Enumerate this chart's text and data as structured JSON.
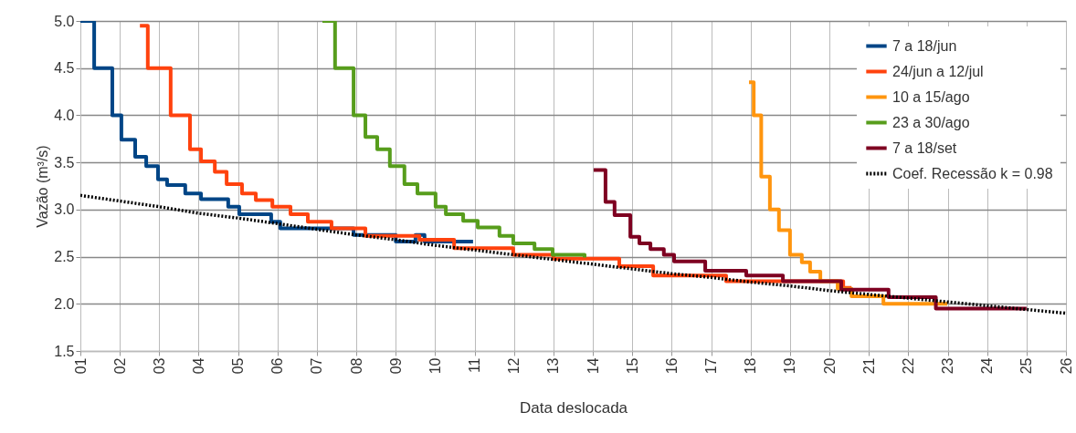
{
  "chart_data": {
    "type": "step",
    "xlabel": "Data deslocada",
    "ylabel": "Vazão (m³/s)",
    "xlim": [
      1,
      26
    ],
    "xticks": [
      {
        "value": 1,
        "label": "01"
      },
      {
        "value": 2,
        "label": "02"
      },
      {
        "value": 3,
        "label": "03"
      },
      {
        "value": 4,
        "label": "04"
      },
      {
        "value": 5,
        "label": "05"
      },
      {
        "value": 6,
        "label": "06"
      },
      {
        "value": 7,
        "label": "07"
      },
      {
        "value": 8,
        "label": "08"
      },
      {
        "value": 9,
        "label": "09"
      },
      10,
      11,
      12,
      13,
      14,
      15,
      16,
      17,
      18,
      19,
      20,
      21,
      22,
      23,
      24,
      25,
      26
    ],
    "ylim": [
      1.5,
      5.0
    ],
    "yticks": [
      1.5,
      {
        "value": 2,
        "label": "2.0"
      },
      2.5,
      {
        "value": 3,
        "label": "3.0"
      },
      3.5,
      {
        "value": 4,
        "label": "4.0"
      },
      4.5,
      {
        "value": 5,
        "label": "5.0"
      }
    ],
    "grid": true,
    "legend": "top right",
    "line_style": "solid",
    "marker": "none",
    "series": [
      {
        "name": "7 a 18/jun",
        "color": "#004586",
        "x": [
          1.0,
          1.35,
          1.81,
          2.04,
          2.39,
          2.67,
          2.97,
          3.2,
          3.66,
          4.06,
          4.75,
          5.03,
          5.84,
          6.07,
          7.93,
          9.0,
          9.5,
          9.73,
          10.96
        ],
        "values": [
          5.0,
          4.5,
          4.0,
          3.74,
          3.56,
          3.46,
          3.32,
          3.26,
          3.17,
          3.11,
          3.03,
          2.95,
          2.87,
          2.8,
          2.73,
          2.66,
          2.73,
          2.66,
          2.66
        ]
      },
      {
        "name": "24/jun a 12/jul",
        "color": "#ff420e",
        "x": [
          2.51,
          2.71,
          3.29,
          3.78,
          4.06,
          4.41,
          4.71,
          5.1,
          5.45,
          5.87,
          6.33,
          6.77,
          7.37,
          8.23,
          9.6,
          10.48,
          11.98,
          13.0,
          14.67,
          15.53,
          17.38,
          20.35,
          20.56
        ],
        "values": [
          4.95,
          4.5,
          4.0,
          3.64,
          3.51,
          3.4,
          3.27,
          3.17,
          3.1,
          3.03,
          2.95,
          2.87,
          2.8,
          2.72,
          2.68,
          2.59,
          2.52,
          2.48,
          2.4,
          2.3,
          2.24,
          2.17,
          2.17
        ]
      },
      {
        "name": "10 a 15/ago",
        "color": "#ff950e",
        "x": [
          17.96,
          18.08,
          18.27,
          18.49,
          18.72,
          19.0,
          19.3,
          19.51,
          19.77,
          20.21,
          20.56,
          21.37,
          22.99
        ],
        "values": [
          4.35,
          4.0,
          3.35,
          3.0,
          2.78,
          2.52,
          2.44,
          2.34,
          2.24,
          2.16,
          2.08,
          2.0,
          2.0
        ]
      },
      {
        "name": "23 a 30/ago",
        "color": "#579d1c",
        "x": [
          7.14,
          7.46,
          7.93,
          8.23,
          8.53,
          8.85,
          9.22,
          9.55,
          10.01,
          10.27,
          10.71,
          11.08,
          11.63,
          11.98,
          12.52,
          12.98,
          13.79
        ],
        "values": [
          5.0,
          4.5,
          4.0,
          3.77,
          3.64,
          3.46,
          3.27,
          3.17,
          3.03,
          2.95,
          2.88,
          2.81,
          2.72,
          2.64,
          2.58,
          2.52,
          2.49
        ]
      },
      {
        "name": "7 a 18/set",
        "color": "#7e0021",
        "x": [
          14.02,
          14.32,
          14.55,
          14.95,
          15.18,
          15.46,
          15.8,
          16.06,
          16.85,
          17.89,
          18.82,
          20.3,
          21.5,
          22.7,
          25.0
        ],
        "values": [
          3.42,
          3.08,
          2.94,
          2.71,
          2.64,
          2.58,
          2.52,
          2.45,
          2.35,
          2.3,
          2.24,
          2.15,
          2.07,
          1.95,
          1.95
        ]
      },
      {
        "name": "Coef. Recessão k = 0.98",
        "color": "#000000",
        "type": "line",
        "line_style": "dotted",
        "x": [
          1,
          2,
          3,
          4,
          5,
          6,
          7,
          8,
          9,
          10,
          11,
          12,
          13,
          14,
          15,
          16,
          17,
          18,
          19,
          20,
          21,
          22,
          23,
          24,
          25,
          26
        ],
        "values": [
          3.15,
          3.09,
          3.03,
          2.96,
          2.91,
          2.85,
          2.79,
          2.73,
          2.68,
          2.62,
          2.57,
          2.52,
          2.47,
          2.42,
          2.37,
          2.32,
          2.28,
          2.23,
          2.19,
          2.14,
          2.1,
          2.06,
          2.02,
          1.98,
          1.94,
          1.9
        ]
      }
    ]
  }
}
